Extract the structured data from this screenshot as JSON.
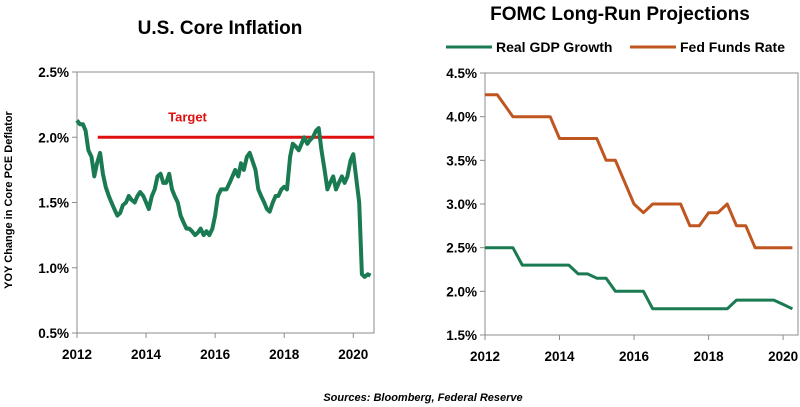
{
  "source": "Sources: Bloomberg, Federal Reserve",
  "colors": {
    "green": "#1a7a52",
    "orange": "#c0561f",
    "target": "#e01010"
  },
  "chart_data": [
    {
      "type": "line",
      "title": "U.S. Core Inflation",
      "ylabel": "YOY Change in Core PCE Deflator",
      "xlim": [
        2012,
        2020.6
      ],
      "ylim": [
        0.5,
        2.5
      ],
      "x_ticks": [
        "2012",
        "2014",
        "2016",
        "2018",
        "2020"
      ],
      "y_ticks": [
        "0.5%",
        "1.0%",
        "1.5%",
        "2.0%",
        "2.5%"
      ],
      "grid": false,
      "annotation": {
        "text": "Target",
        "value": 2.0,
        "x_start": 2012.6
      },
      "series": [
        {
          "name": "",
          "x": [
            2012.0,
            2012.08,
            2012.17,
            2012.25,
            2012.33,
            2012.42,
            2012.5,
            2012.58,
            2012.67,
            2012.75,
            2012.83,
            2012.92,
            2013.0,
            2013.08,
            2013.17,
            2013.25,
            2013.33,
            2013.42,
            2013.5,
            2013.58,
            2013.67,
            2013.75,
            2013.83,
            2013.92,
            2014.0,
            2014.08,
            2014.17,
            2014.25,
            2014.33,
            2014.42,
            2014.5,
            2014.58,
            2014.67,
            2014.75,
            2014.83,
            2014.92,
            2015.0,
            2015.08,
            2015.17,
            2015.25,
            2015.33,
            2015.42,
            2015.5,
            2015.58,
            2015.67,
            2015.75,
            2015.83,
            2015.92,
            2016.0,
            2016.08,
            2016.17,
            2016.25,
            2016.33,
            2016.42,
            2016.5,
            2016.58,
            2016.67,
            2016.75,
            2016.83,
            2016.92,
            2017.0,
            2017.08,
            2017.17,
            2017.25,
            2017.33,
            2017.42,
            2017.5,
            2017.58,
            2017.67,
            2017.75,
            2017.83,
            2017.92,
            2018.0,
            2018.08,
            2018.17,
            2018.25,
            2018.33,
            2018.42,
            2018.5,
            2018.58,
            2018.67,
            2018.75,
            2018.83,
            2018.92,
            2019.0,
            2019.08,
            2019.17,
            2019.25,
            2019.33,
            2019.42,
            2019.5,
            2019.58,
            2019.67,
            2019.75,
            2019.83,
            2019.92,
            2020.0,
            2020.08,
            2020.17,
            2020.25,
            2020.33,
            2020.42,
            2020.5
          ],
          "y": [
            2.13,
            2.1,
            2.1,
            2.05,
            1.9,
            1.85,
            1.7,
            1.8,
            1.88,
            1.72,
            1.62,
            1.55,
            1.5,
            1.45,
            1.4,
            1.42,
            1.48,
            1.5,
            1.55,
            1.52,
            1.5,
            1.55,
            1.58,
            1.55,
            1.5,
            1.45,
            1.55,
            1.6,
            1.7,
            1.72,
            1.65,
            1.65,
            1.72,
            1.6,
            1.55,
            1.5,
            1.4,
            1.35,
            1.3,
            1.3,
            1.28,
            1.25,
            1.27,
            1.3,
            1.25,
            1.28,
            1.25,
            1.3,
            1.4,
            1.55,
            1.6,
            1.6,
            1.6,
            1.65,
            1.7,
            1.75,
            1.7,
            1.8,
            1.75,
            1.85,
            1.88,
            1.82,
            1.75,
            1.6,
            1.55,
            1.5,
            1.45,
            1.43,
            1.5,
            1.55,
            1.55,
            1.6,
            1.62,
            1.6,
            1.85,
            1.95,
            1.93,
            1.9,
            1.95,
            2.0,
            1.95,
            1.98,
            2.0,
            2.05,
            2.07,
            1.9,
            1.75,
            1.6,
            1.65,
            1.7,
            1.6,
            1.65,
            1.7,
            1.65,
            1.7,
            1.82,
            1.87,
            1.7,
            1.5,
            0.95,
            0.93,
            0.95,
            0.94
          ]
        }
      ]
    },
    {
      "type": "line",
      "title": "FOMC Long-Run Projections",
      "xlim": [
        2012,
        2020.4
      ],
      "ylim": [
        1.5,
        4.5
      ],
      "x_ticks": [
        "2012",
        "2014",
        "2016",
        "2018",
        "2020"
      ],
      "y_ticks": [
        "1.5%",
        "2.0%",
        "2.5%",
        "3.0%",
        "3.5%",
        "4.0%",
        "4.5%"
      ],
      "grid": false,
      "legend": "top",
      "series": [
        {
          "name": "Real GDP Growth",
          "x": [
            2012.0,
            2012.33,
            2012.75,
            2013.0,
            2013.25,
            2013.5,
            2013.75,
            2014.0,
            2014.25,
            2014.5,
            2014.75,
            2015.0,
            2015.25,
            2015.5,
            2015.75,
            2016.0,
            2016.25,
            2016.5,
            2016.75,
            2017.0,
            2017.25,
            2017.5,
            2017.75,
            2018.0,
            2018.25,
            2018.5,
            2018.75,
            2019.0,
            2019.25,
            2019.5,
            2019.75,
            2020.0,
            2020.25
          ],
          "y": [
            2.5,
            2.5,
            2.5,
            2.3,
            2.3,
            2.3,
            2.3,
            2.3,
            2.3,
            2.2,
            2.2,
            2.15,
            2.15,
            2.0,
            2.0,
            2.0,
            2.0,
            1.8,
            1.8,
            1.8,
            1.8,
            1.8,
            1.8,
            1.8,
            1.8,
            1.8,
            1.9,
            1.9,
            1.9,
            1.9,
            1.9,
            1.85,
            1.8
          ]
        },
        {
          "name": "Fed Funds Rate",
          "x": [
            2012.0,
            2012.33,
            2012.75,
            2013.0,
            2013.25,
            2013.5,
            2013.75,
            2014.0,
            2014.25,
            2014.5,
            2014.75,
            2015.0,
            2015.25,
            2015.5,
            2015.75,
            2016.0,
            2016.25,
            2016.5,
            2016.75,
            2017.0,
            2017.25,
            2017.5,
            2017.75,
            2018.0,
            2018.25,
            2018.5,
            2018.75,
            2019.0,
            2019.25,
            2019.5,
            2019.75,
            2020.0,
            2020.25
          ],
          "y": [
            4.25,
            4.25,
            4.0,
            4.0,
            4.0,
            4.0,
            4.0,
            3.75,
            3.75,
            3.75,
            3.75,
            3.75,
            3.5,
            3.5,
            3.25,
            3.0,
            2.9,
            3.0,
            3.0,
            3.0,
            3.0,
            2.75,
            2.75,
            2.9,
            2.9,
            3.0,
            2.75,
            2.75,
            2.5,
            2.5,
            2.5,
            2.5,
            2.5
          ]
        }
      ]
    }
  ]
}
